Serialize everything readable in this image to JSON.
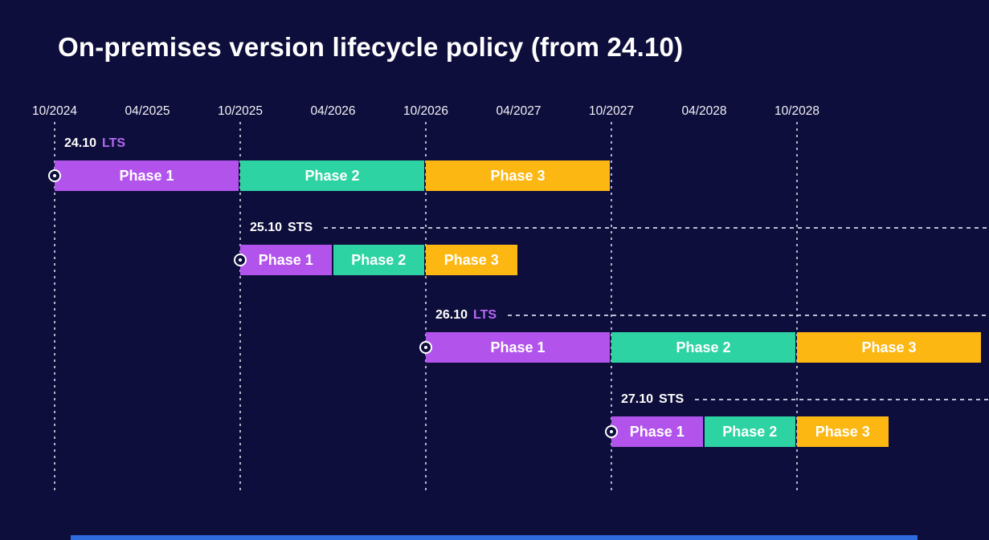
{
  "title": "On-premises version lifecycle policy (from 24.10)",
  "colors": {
    "background": "#0e0e3c",
    "phase1": "#b254ec",
    "phase2": "#2ed3a3",
    "phase3": "#fcb712",
    "lts_label": "#b469f2",
    "sts_label": "#ffffff",
    "grid": "#e9e9f5",
    "footer_bar": "#2e6bdf"
  },
  "chart_data": {
    "type": "gantt",
    "title": "On-premises version lifecycle policy (from 24.10)",
    "x_ticks": [
      "10/2024",
      "04/2025",
      "10/2025",
      "04/2026",
      "10/2026",
      "04/2027",
      "10/2027",
      "04/2028",
      "10/2028"
    ],
    "gridlines": [
      "10/2024",
      "10/2025",
      "10/2026",
      "10/2027",
      "10/2028"
    ],
    "axis_range": [
      "10/2024",
      "10/2029"
    ],
    "phase_colors": {
      "Phase 1": "#b254ec",
      "Phase 2": "#2ed3a3",
      "Phase 3": "#fcb712"
    },
    "releases": [
      {
        "version": "24.10",
        "type": "LTS",
        "dashed_line": false,
        "phases": [
          {
            "label": "Phase 1",
            "start": "10/2024",
            "end": "10/2025"
          },
          {
            "label": "Phase 2",
            "start": "10/2025",
            "end": "10/2026"
          },
          {
            "label": "Phase 3",
            "start": "10/2026",
            "end": "10/2027"
          }
        ]
      },
      {
        "version": "25.10",
        "type": "STS",
        "dashed_line": true,
        "phases": [
          {
            "label": "Phase 1",
            "start": "10/2025",
            "end": "04/2026"
          },
          {
            "label": "Phase 2",
            "start": "04/2026",
            "end": "10/2026"
          },
          {
            "label": "Phase 3",
            "start": "10/2026",
            "end": "04/2027"
          }
        ]
      },
      {
        "version": "26.10",
        "type": "LTS",
        "dashed_line": true,
        "phases": [
          {
            "label": "Phase 1",
            "start": "10/2026",
            "end": "10/2027"
          },
          {
            "label": "Phase 2",
            "start": "10/2027",
            "end": "10/2028"
          },
          {
            "label": "Phase 3",
            "start": "10/2028",
            "end": "10/2029"
          }
        ]
      },
      {
        "version": "27.10",
        "type": "STS",
        "dashed_line": true,
        "phases": [
          {
            "label": "Phase 1",
            "start": "10/2027",
            "end": "04/2028"
          },
          {
            "label": "Phase 2",
            "start": "04/2028",
            "end": "10/2028"
          },
          {
            "label": "Phase 3",
            "start": "10/2028",
            "end": "04/2029"
          }
        ]
      }
    ]
  }
}
